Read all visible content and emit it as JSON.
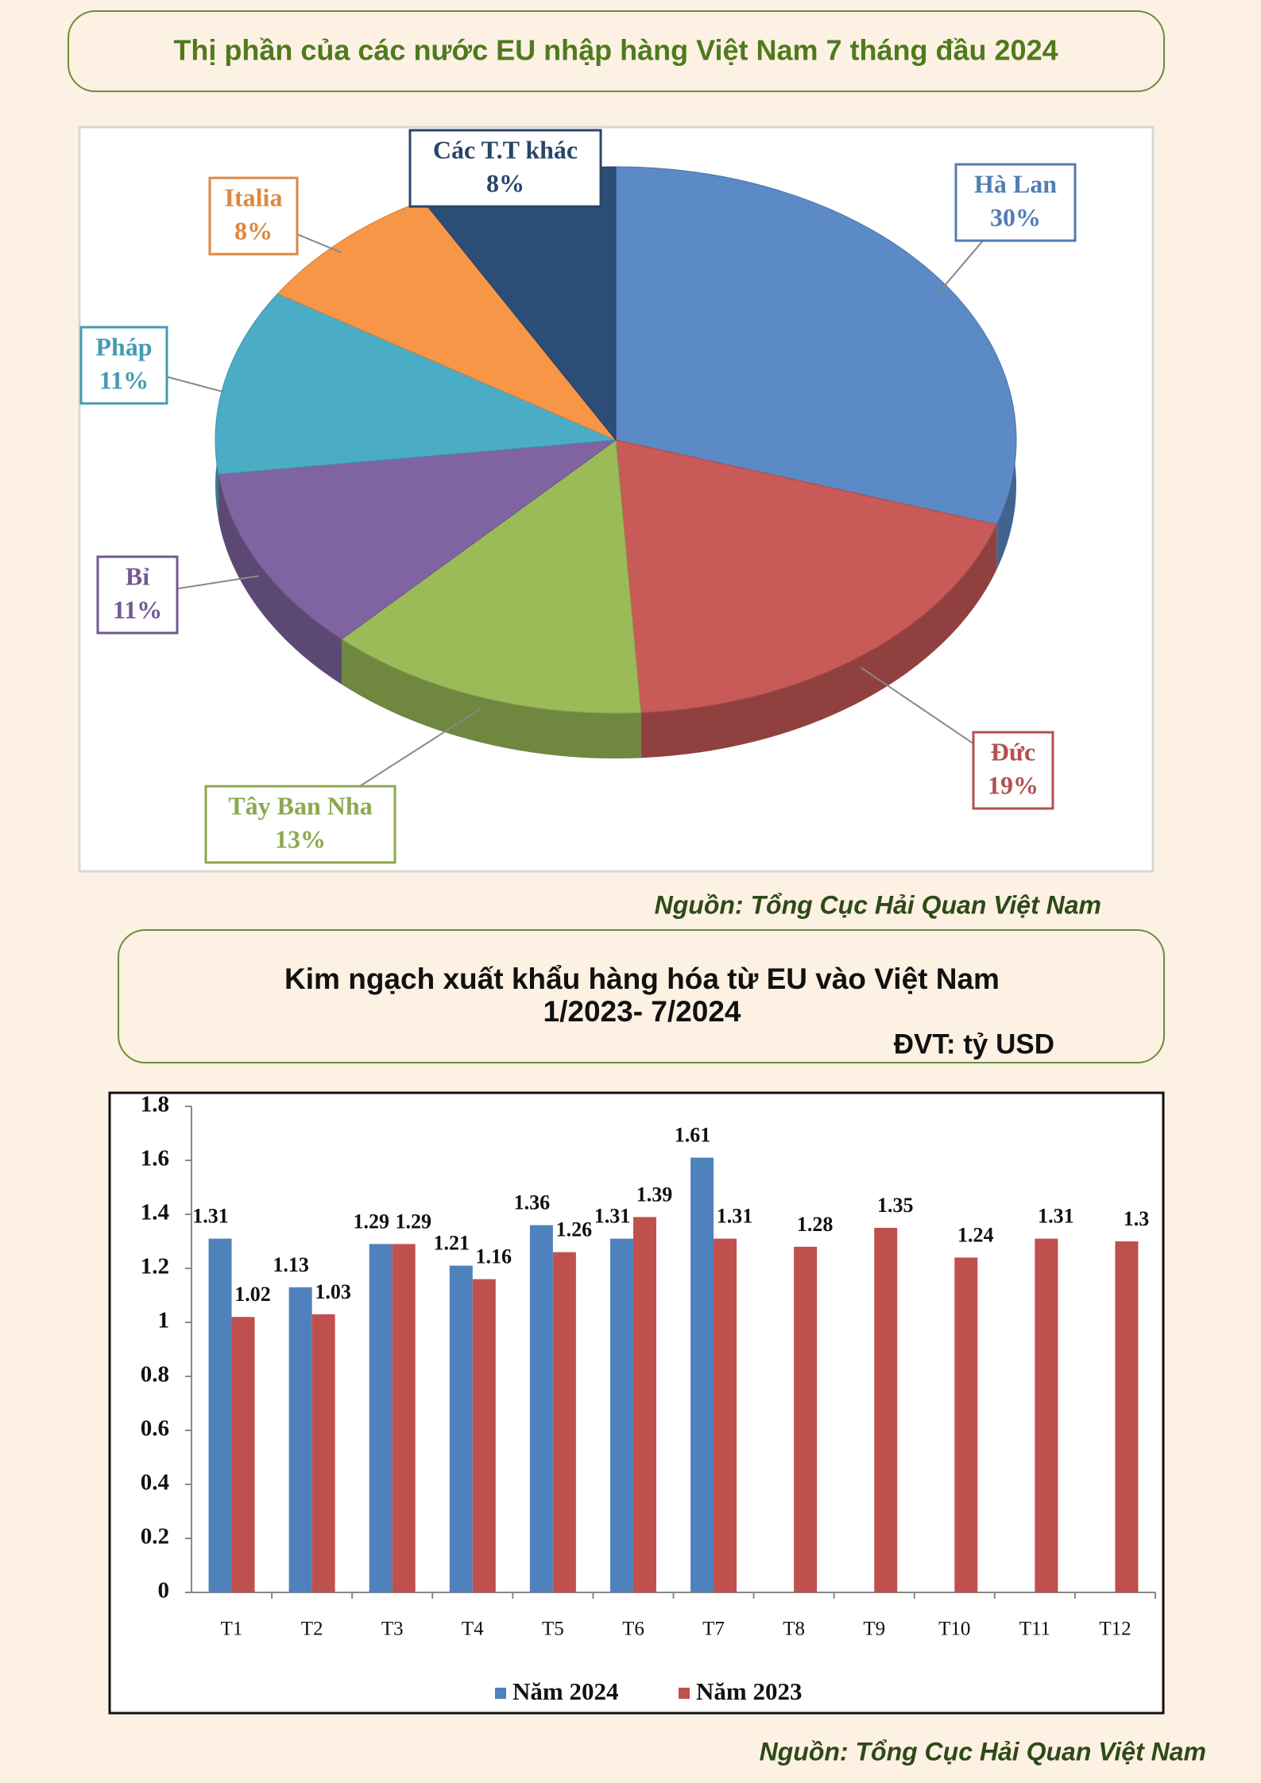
{
  "chart_data": [
    {
      "type": "pie",
      "title": "Thị phần của các nước EU  nhập hàng Việt Nam 7 tháng đầu 2024",
      "categories": [
        "Hà Lan",
        "Đức",
        "Tây Ban Nha",
        "Bỉ",
        "Pháp",
        "Italia",
        "Các T.T khác"
      ],
      "values": [
        30,
        19,
        13,
        11,
        11,
        8,
        8
      ],
      "value_labels": [
        "30%",
        "19%",
        "13%",
        "11%",
        "11%",
        "8%",
        "8%"
      ],
      "colors": [
        "#5b8ac6",
        "#c85a58",
        "#9bbb59",
        "#8064a2",
        "#4bacc6",
        "#f79646",
        "#2c4d75"
      ],
      "source": "Nguồn: Tổng Cục Hải Quan Việt Nam"
    },
    {
      "type": "bar",
      "title": "Kim ngạch xuất khẩu hàng hóa  từ EU vào Việt Nam",
      "subtitle": "1/2023- 7/2024",
      "unit": "ĐVT: tỷ USD",
      "categories": [
        "T1",
        "T2",
        "T3",
        "T4",
        "T5",
        "T6",
        "T7",
        "T8",
        "T9",
        "T10",
        "T11",
        "T12"
      ],
      "series": [
        {
          "name": "Năm 2024",
          "color": "#4f81bd",
          "values": [
            1.31,
            1.13,
            1.29,
            1.21,
            1.36,
            1.31,
            1.61,
            null,
            null,
            null,
            null,
            null
          ]
        },
        {
          "name": "Năm 2023",
          "color": "#c0504d",
          "values": [
            1.02,
            1.03,
            1.29,
            1.16,
            1.26,
            1.39,
            1.31,
            1.28,
            1.35,
            1.24,
            1.31,
            1.3
          ]
        }
      ],
      "ylim": [
        0,
        1.8
      ],
      "yticks": [
        0,
        0.2,
        0.4,
        0.6,
        0.8,
        1,
        1.2,
        1.4,
        1.6,
        1.8
      ],
      "grid": false,
      "legend": "bottom",
      "source": "Nguồn: Tổng Cục Hải Quan Việt Nam"
    }
  ]
}
